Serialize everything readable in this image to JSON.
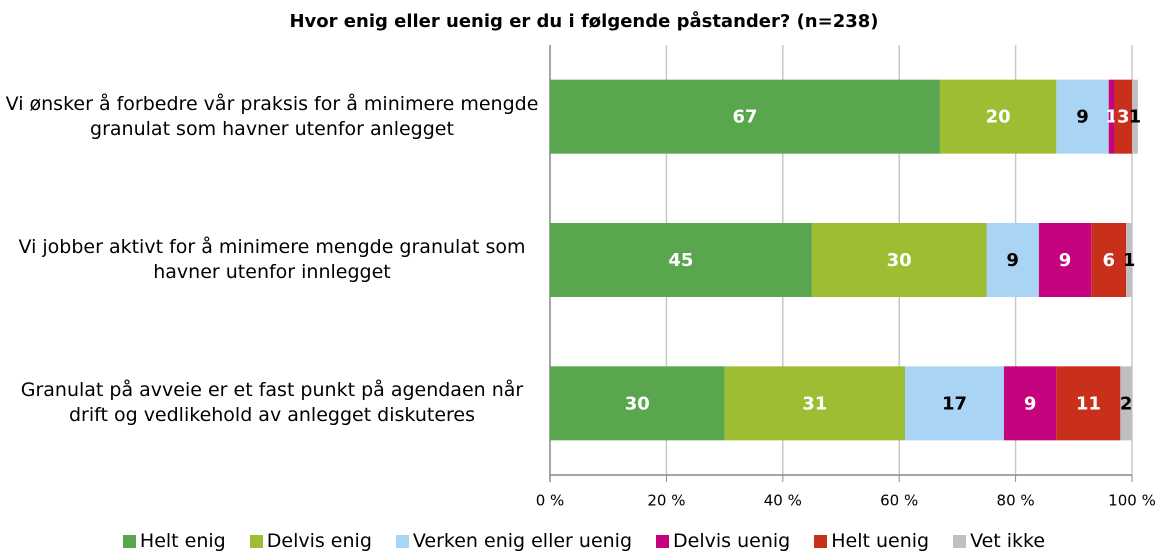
{
  "chart_data": {
    "type": "stacked_bar_horizontal",
    "title": "Hvor enig eller uenig er du i følgende påstander? (n=238)",
    "categories": [
      "Vi ønsker å forbedre vår praksis for å minimere mengde granulat som havner utenfor anlegget",
      "Vi jobber aktivt for å minimere mengde granulat som havner utenfor innlegget",
      "Granulat på avveie er et fast punkt på agendaen når drift og vedlikehold av anlegget diskuteres"
    ],
    "series": [
      {
        "name": "Helt enig",
        "color": "#5aa64f",
        "label_color": "#ffffff",
        "values": [
          67,
          45,
          30
        ]
      },
      {
        "name": "Delvis enig",
        "color": "#9dbe33",
        "label_color": "#ffffff",
        "values": [
          20,
          30,
          31
        ]
      },
      {
        "name": "Verken enig eller uenig",
        "color": "#a9d4f3",
        "label_color": "#000000",
        "values": [
          9,
          9,
          17
        ]
      },
      {
        "name": "Delvis uenig",
        "color": "#c6037e",
        "label_color": "#ffffff",
        "values": [
          1,
          9,
          9
        ]
      },
      {
        "name": "Helt uenig",
        "color": "#c9301c",
        "label_color": "#ffffff",
        "values": [
          3,
          6,
          11
        ]
      },
      {
        "name": "Vet ikke",
        "color": "#bfbfbf",
        "label_color": "#000000",
        "values": [
          1,
          1,
          2
        ]
      }
    ],
    "xlim": [
      0,
      100
    ],
    "xticks": [
      {
        "value": 0,
        "label": "0 %"
      },
      {
        "value": 20,
        "label": "20 %"
      },
      {
        "value": 40,
        "label": "40 %"
      },
      {
        "value": 60,
        "label": "60 %"
      },
      {
        "value": 80,
        "label": "80 %"
      },
      {
        "value": 100,
        "label": "100 %"
      }
    ],
    "grid": true,
    "legend": "bottom"
  }
}
